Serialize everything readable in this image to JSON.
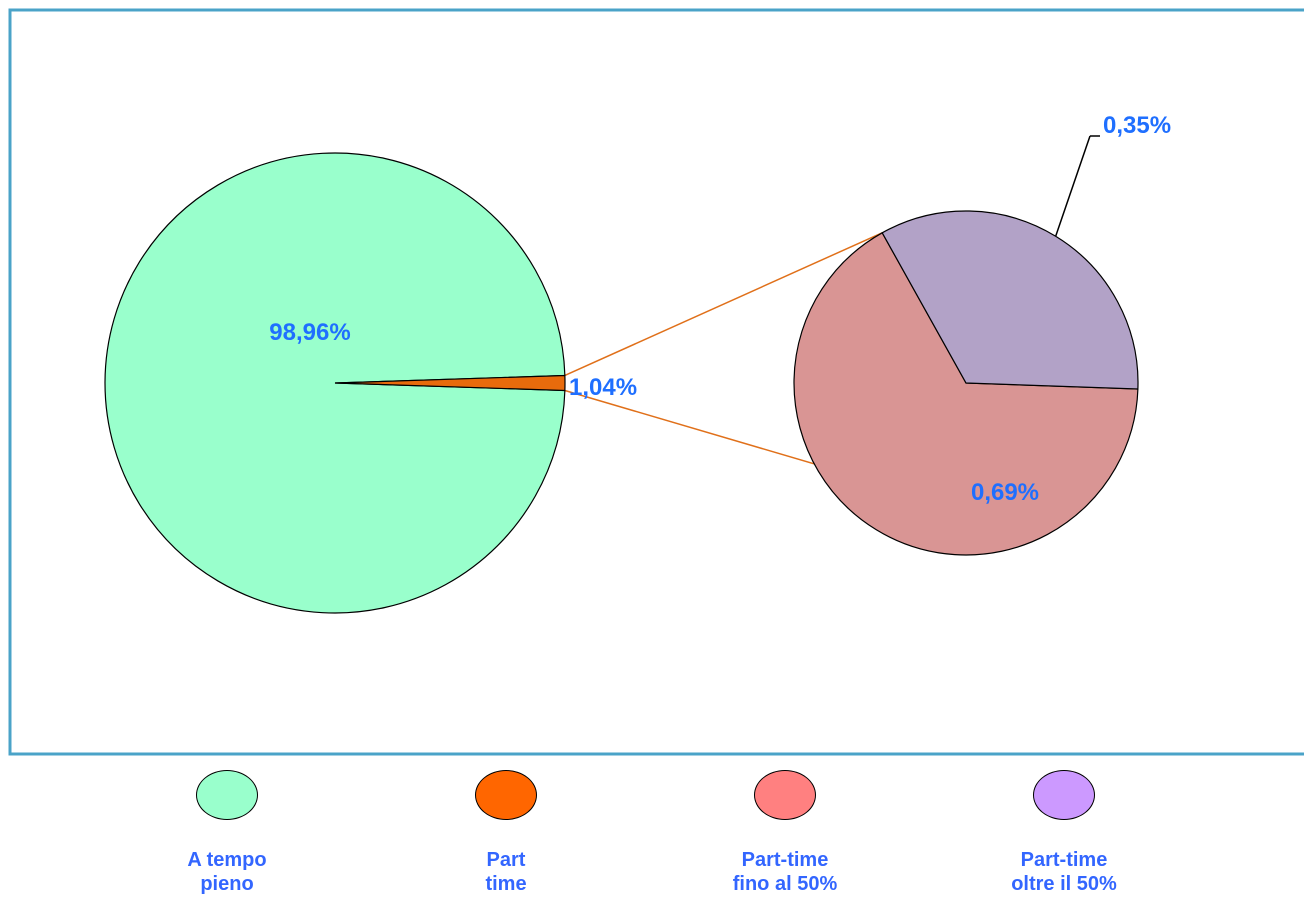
{
  "colors": {
    "frame": "#4aa3c8",
    "connector": "#e0701a",
    "label": "#1f6fff"
  },
  "chart_data": {
    "type": "pie",
    "subtype": "pie-of-pie",
    "main_pie": {
      "slices": [
        {
          "category": "A tempo pieno",
          "value": 98.96,
          "label": "98,96%",
          "color": "#99ffcc"
        },
        {
          "category": "Part time",
          "value": 1.04,
          "label": "1,04%",
          "color": "#e86b0c"
        }
      ]
    },
    "secondary_pie": {
      "expands": "Part time",
      "slices": [
        {
          "category": "Part-time fino al 50%",
          "value": 0.69,
          "label": "0,69%",
          "color": "#d99594"
        },
        {
          "category": "Part-time oltre il 50%",
          "value": 0.35,
          "label": "0,35%",
          "color": "#b2a2c7"
        }
      ]
    },
    "legend": {
      "position": "bottom",
      "items": [
        {
          "label": "A tempo\npieno",
          "color": "#99ffcc"
        },
        {
          "label": "Part\ntime",
          "color": "#ff6600"
        },
        {
          "label": "Part-time\nfino al 50%",
          "color": "#ff8080"
        },
        {
          "label": "Part-time\noltre il 50%",
          "color": "#cc99ff"
        }
      ]
    }
  }
}
